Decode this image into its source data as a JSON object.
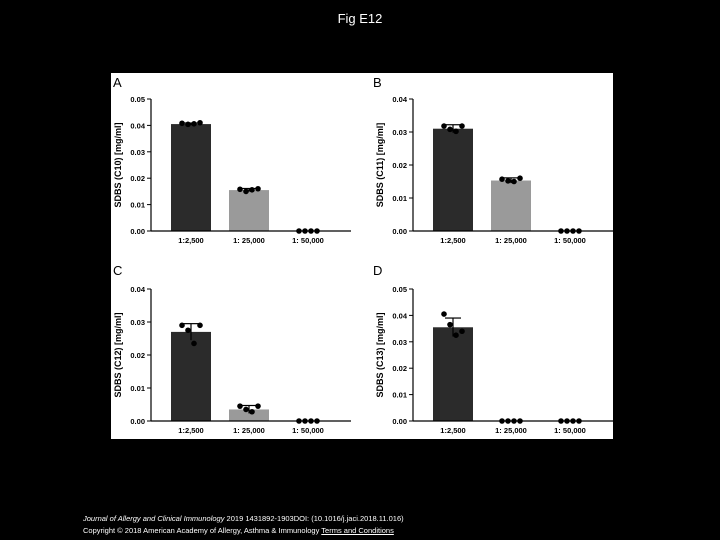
{
  "page": {
    "title": "Fig E12",
    "background": "#000000",
    "panel_background": "#ffffff"
  },
  "footer": {
    "journal": "Journal of Allergy and Clinical Immunology",
    "citation": " 2019 1431892-1903DOI: (10.1016/j.jaci.2018.11.016)",
    "copyright": "Copyright © 2018 American Academy of Allergy, Asthma & Immunology",
    "terms_link": "Terms and Conditions"
  },
  "colors": {
    "bar_dark": "#2b2b2b",
    "bar_light": "#9a9a9a",
    "axis": "#000000",
    "point": "#000000"
  },
  "chart_data": [
    {
      "type": "bar",
      "panel": "A",
      "ylabel": "SDBS (C10) [mg/ml]",
      "ylim": [
        0,
        0.05
      ],
      "yticks": [
        "0.00",
        "0.01",
        "0.02",
        "0.03",
        "0.04",
        "0.05"
      ],
      "categories": [
        "1:2,500",
        "1: 25,000",
        "1: 50,000"
      ],
      "values": [
        0.0405,
        0.0155,
        0.0
      ],
      "error": [
        0.0004,
        0.0006,
        0.0
      ],
      "points": [
        [
          0.0408,
          0.0404,
          0.0406,
          0.041
        ],
        [
          0.0158,
          0.015,
          0.0156,
          0.016
        ],
        [
          0,
          0,
          0,
          0
        ]
      ],
      "bar_colors": [
        "dark",
        "light",
        "dark"
      ]
    },
    {
      "type": "bar",
      "panel": "B",
      "ylabel": "SDBS (C11) [mg/ml]",
      "ylim": [
        0,
        0.04
      ],
      "yticks": [
        "0.00",
        "0.01",
        "0.02",
        "0.03",
        "0.04"
      ],
      "categories": [
        "1:2,500",
        "1: 25,000",
        "1: 50,000"
      ],
      "values": [
        0.031,
        0.0153,
        0.0
      ],
      "error": [
        0.0012,
        0.0008,
        0.0
      ],
      "points": [
        [
          0.0318,
          0.0308,
          0.0302,
          0.0318
        ],
        [
          0.0157,
          0.0152,
          0.015,
          0.016
        ],
        [
          0,
          0,
          0,
          0
        ]
      ],
      "bar_colors": [
        "dark",
        "light",
        "dark"
      ]
    },
    {
      "type": "bar",
      "panel": "C",
      "ylabel": "SDBS (C12) [mg/ml]",
      "ylim": [
        0,
        0.04
      ],
      "yticks": [
        "0.00",
        "0.01",
        "0.02",
        "0.03",
        "0.04"
      ],
      "categories": [
        "1:2,500",
        "1: 25,000",
        "1: 50,000"
      ],
      "values": [
        0.027,
        0.0035,
        0.0
      ],
      "error": [
        0.0025,
        0.0012,
        0.0
      ],
      "points": [
        [
          0.029,
          0.0275,
          0.0235,
          0.029
        ],
        [
          0.0045,
          0.0035,
          0.0028,
          0.0045
        ],
        [
          0,
          0,
          0,
          0
        ]
      ],
      "bar_colors": [
        "dark",
        "light",
        "dark"
      ]
    },
    {
      "type": "bar",
      "panel": "D",
      "ylabel": "SDBS (C13) [mg/ml]",
      "ylim": [
        0,
        0.05
      ],
      "yticks": [
        "0.00",
        "0.01",
        "0.02",
        "0.03",
        "0.04",
        "0.05"
      ],
      "categories": [
        "1:2,500",
        "1: 25,000",
        "1: 50,000"
      ],
      "values": [
        0.0355,
        0.0,
        0.0
      ],
      "error": [
        0.0035,
        0.0,
        0.0
      ],
      "points": [
        [
          0.0405,
          0.0365,
          0.0325,
          0.034
        ],
        [
          0,
          0,
          0,
          0
        ],
        [
          0,
          0,
          0,
          0
        ]
      ],
      "bar_colors": [
        "dark",
        "dark",
        "dark"
      ]
    }
  ]
}
